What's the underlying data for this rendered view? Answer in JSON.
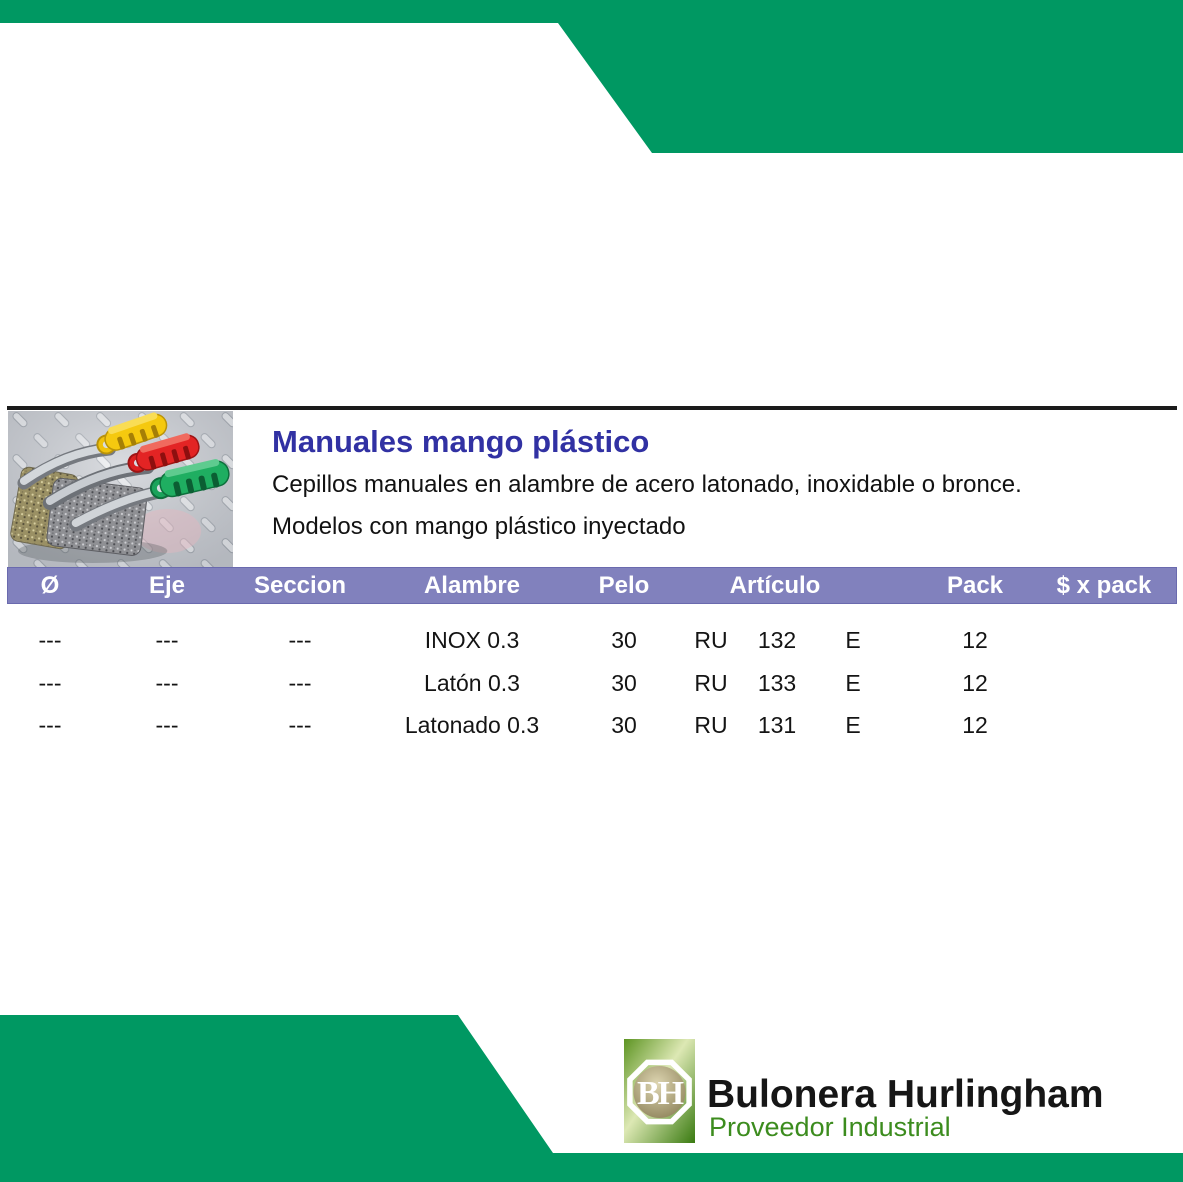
{
  "product": {
    "title": "Manuales mango plástico",
    "description_line1": "Cepillos manuales en alambre de acero latonado, inoxidable o bronce.",
    "description_line2": "Modelos con mango plástico inyectado"
  },
  "table": {
    "columns": [
      "Ø",
      "Eje",
      "Seccion",
      "Alambre",
      "Pelo",
      "Artículo",
      "Pack",
      "$ x pack"
    ],
    "rows": [
      {
        "diametro": "---",
        "eje": "---",
        "seccion": "---",
        "alambre": "INOX 0.3",
        "pelo": "30",
        "articulo_prefijo": "RU",
        "articulo_numero": "132",
        "articulo_sufijo": "E",
        "pack": "12",
        "precio_pack": ""
      },
      {
        "diametro": "---",
        "eje": "---",
        "seccion": "---",
        "alambre": "Latón 0.3",
        "pelo": "30",
        "articulo_prefijo": "RU",
        "articulo_numero": "133",
        "articulo_sufijo": "E",
        "pack": "12",
        "precio_pack": ""
      },
      {
        "diametro": "---",
        "eje": "---",
        "seccion": "---",
        "alambre": "Latonado 0.3",
        "pelo": "30",
        "articulo_prefijo": "RU",
        "articulo_numero": "131",
        "articulo_sufijo": "E",
        "pack": "12",
        "precio_pack": ""
      }
    ]
  },
  "footer": {
    "brand_name": "Bulonera Hurlingham",
    "brand_tagline": "Proveedor Industrial",
    "logo_monogram": "BH"
  },
  "colors": {
    "accent_green": "#009862",
    "table_header_purple": "#8181bd",
    "title_blue": "#3131a3",
    "tagline_green": "#3c8c1e"
  }
}
